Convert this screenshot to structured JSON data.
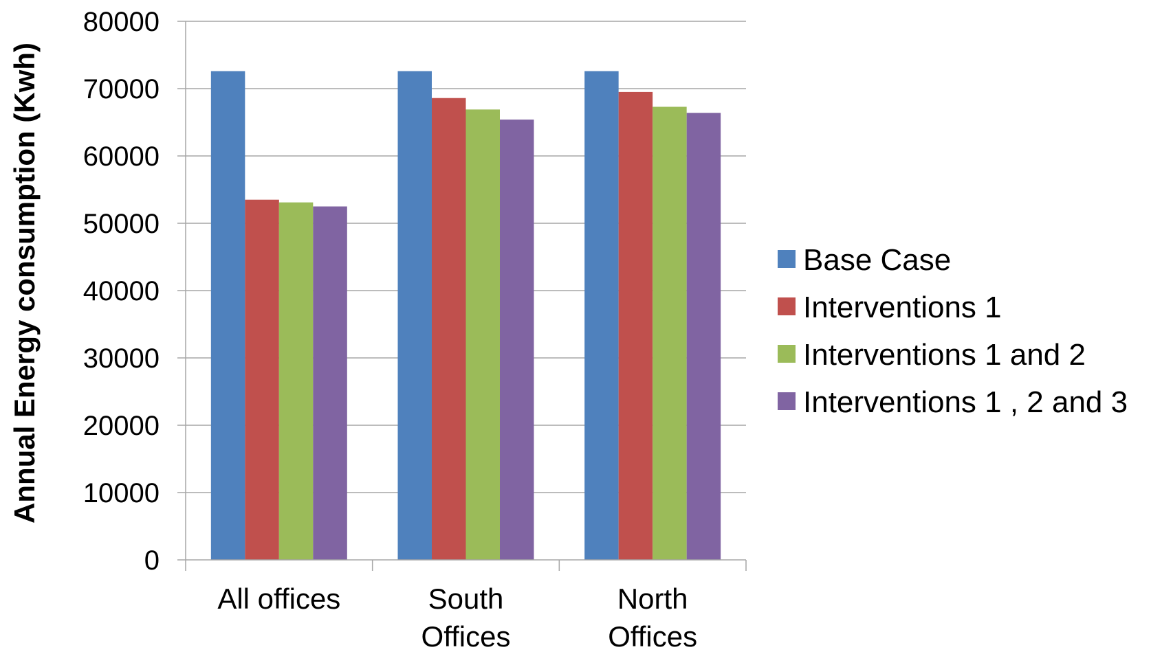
{
  "chart_data": {
    "type": "bar",
    "title": "",
    "xlabel": "",
    "ylabel": "Annual Energy consumption (Kwh)",
    "ylim": [
      0,
      80000
    ],
    "yticks": [
      "0",
      "10000",
      "20000",
      "30000",
      "40000",
      "50000",
      "60000",
      "70000",
      "80000"
    ],
    "grid": true,
    "legend_position": "right",
    "categories": [
      [
        "All offices"
      ],
      [
        "South",
        "Offices"
      ],
      [
        "North",
        "Offices"
      ]
    ],
    "series": [
      {
        "name": "Base Case",
        "color": "#4F81BD",
        "values": [
          72600,
          72600,
          72600
        ]
      },
      {
        "name": "Interventions 1",
        "color": "#C0504D",
        "values": [
          53500,
          68600,
          69500
        ]
      },
      {
        "name": "Interventions 1 and 2",
        "color": "#9BBB59",
        "values": [
          53100,
          66900,
          67300
        ]
      },
      {
        "name": "Interventions 1 , 2 and 3",
        "color": "#8064A2",
        "values": [
          52500,
          65400,
          66400
        ]
      }
    ]
  }
}
